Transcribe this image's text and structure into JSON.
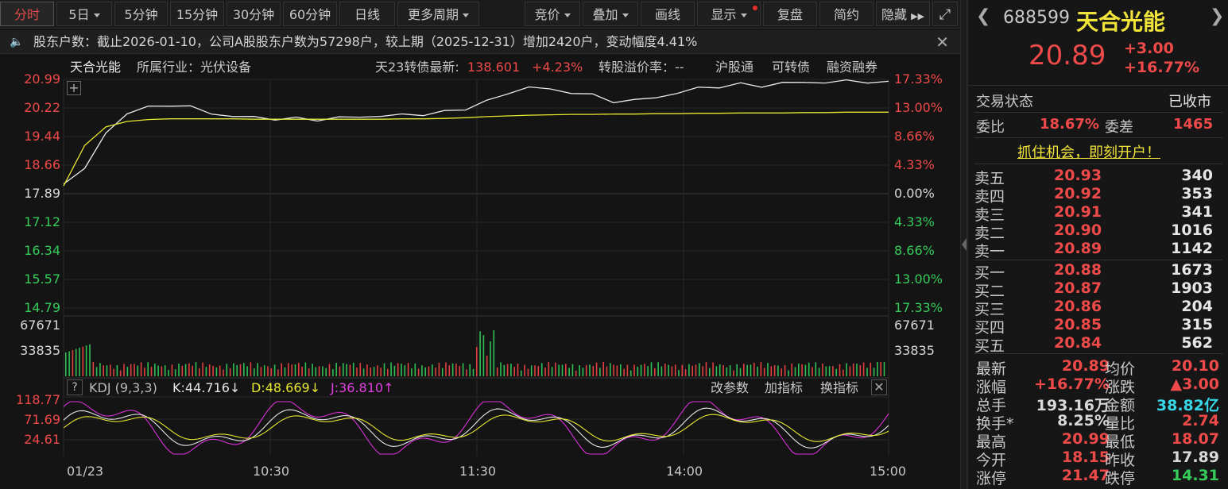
{
  "toolbar": {
    "periods": [
      "分时",
      "5日",
      "5分钟",
      "15分钟",
      "30分钟",
      "60分钟",
      "日线",
      "更多周期"
    ],
    "tools": [
      "竞价",
      "叠加",
      "画线",
      "显示",
      "复盘",
      "简约",
      "隐藏"
    ]
  },
  "notice": {
    "text": "股东户数：截止2026-01-10，公司A股股东户数为57298户，较上期（2025-12-31）增加2420户，变动幅度4.41%"
  },
  "info": {
    "name": "天合光能",
    "industry": "所属行业：光伏设备",
    "bond_label": "天23转债最新:",
    "bond_price": "138.601",
    "bond_change": "+4.23%",
    "premium": "转股溢价率：--",
    "links": [
      "沪股通",
      "可转债",
      "融资融券"
    ]
  },
  "price_axis_left": [
    "20.99",
    "20.22",
    "19.44",
    "18.66",
    "17.89",
    "17.12",
    "16.34",
    "15.57",
    "14.79"
  ],
  "price_axis_right": [
    "17.33%",
    "13.00%",
    "8.66%",
    "4.33%",
    "0.00%",
    "4.33%",
    "8.66%",
    "13.00%",
    "17.33%"
  ],
  "volume_axis": [
    "67671",
    "33835"
  ],
  "kdj": {
    "label": "KDJ (9,3,3)",
    "k": "K:44.716↓",
    "d": "D:48.669↓",
    "j": "J:36.810↑",
    "buttons": [
      "改参数",
      "加指标",
      "换指标"
    ],
    "axis": [
      "118.77",
      "71.69",
      "24.61"
    ]
  },
  "time_axis": [
    "01/23",
    "10:30",
    "11:30",
    "14:00",
    "15:00"
  ],
  "chart_data": {
    "type": "line",
    "series": [
      {
        "name": "price",
        "values": [
          18.15,
          18.6,
          19.5,
          20.1,
          20.22,
          20.3,
          20.25,
          20.05,
          20.0,
          19.95,
          19.93,
          19.92,
          19.9,
          19.95,
          19.97,
          20.0,
          20.02,
          20.05,
          20.1,
          20.2,
          20.4,
          20.6,
          20.8,
          20.7,
          20.65,
          20.55,
          20.4,
          20.42,
          20.5,
          20.62,
          20.75,
          20.8,
          20.85,
          20.82,
          20.88,
          20.92,
          20.9,
          20.95,
          20.93,
          20.89
        ]
      },
      {
        "name": "avg",
        "values": [
          18.1,
          19.2,
          19.7,
          19.85,
          19.9,
          19.92,
          19.92,
          19.92,
          19.92,
          19.91,
          19.91,
          19.91,
          19.91,
          19.91,
          19.91,
          19.91,
          19.92,
          19.92,
          19.93,
          19.95,
          19.98,
          20.0,
          20.02,
          20.03,
          20.04,
          20.04,
          20.05,
          20.05,
          20.06,
          20.06,
          20.07,
          20.07,
          20.08,
          20.08,
          20.08,
          20.09,
          20.09,
          20.1,
          20.1,
          20.1
        ]
      }
    ],
    "ylim": [
      14.79,
      20.99
    ]
  },
  "quote": {
    "code": "688599",
    "name": "天合光能",
    "price": "20.89",
    "change": "+3.00",
    "pct": "+16.77%",
    "state_label": "交易状态",
    "state": "已收市",
    "wb_label": "委比",
    "wb": "18.67%",
    "wc_label": "委差",
    "wc": "1465",
    "promo": "抓住机会，即刻开户！",
    "sells": [
      {
        "label": "卖五",
        "price": "20.93",
        "vol": "340"
      },
      {
        "label": "卖四",
        "price": "20.92",
        "vol": "353"
      },
      {
        "label": "卖三",
        "price": "20.91",
        "vol": "341"
      },
      {
        "label": "卖二",
        "price": "20.90",
        "vol": "1016"
      },
      {
        "label": "卖一",
        "price": "20.89",
        "vol": "1142"
      }
    ],
    "buys": [
      {
        "label": "买一",
        "price": "20.88",
        "vol": "1673"
      },
      {
        "label": "买二",
        "price": "20.87",
        "vol": "1903"
      },
      {
        "label": "买三",
        "price": "20.86",
        "vol": "204"
      },
      {
        "label": "买四",
        "price": "20.85",
        "vol": "315"
      },
      {
        "label": "买五",
        "price": "20.84",
        "vol": "562"
      }
    ],
    "stats": [
      {
        "l1": "最新",
        "v1": "20.89",
        "c1": "red",
        "l2": "均价",
        "v2": "20.10",
        "c2": "red"
      },
      {
        "l1": "涨幅",
        "v1": "+16.77%",
        "c1": "red",
        "l2": "涨跌",
        "v2": "▲3.00",
        "c2": "red"
      },
      {
        "l1": "总手",
        "v1": "193.16万",
        "c1": "white",
        "l2": "金额",
        "v2": "38.82亿",
        "c2": "cyan"
      },
      {
        "l1": "换手*",
        "v1": "8.25%",
        "c1": "white",
        "l2": "量比",
        "v2": "2.74",
        "c2": "red"
      },
      {
        "l1": "最高",
        "v1": "20.99",
        "c1": "red",
        "l2": "最低",
        "v2": "18.07",
        "c2": "red"
      },
      {
        "l1": "今开",
        "v1": "18.15",
        "c1": "red",
        "l2": "昨收",
        "v2": "17.89",
        "c2": "white"
      },
      {
        "l1": "涨停",
        "v1": "21.47",
        "c1": "red",
        "l2": "跌停",
        "v2": "14.31",
        "c2": "green"
      }
    ]
  }
}
